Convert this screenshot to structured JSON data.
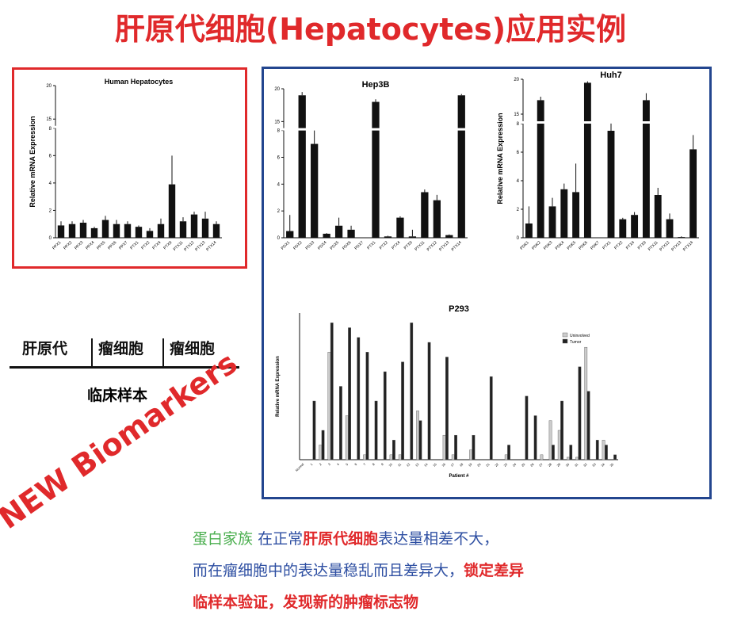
{
  "title": "肝原代细胞(Hepatocytes)应用实例",
  "samples": {
    "headers": [
      "肝原代",
      "瘤细胞",
      "瘤细胞"
    ],
    "label": "临床样本"
  },
  "tag": "NEW Biomarkers",
  "description": {
    "line1": [
      "蛋白家族",
      "在正常",
      "肝原代细胞",
      "表达量相差不大，"
    ],
    "line2": [
      "而在瘤细胞中的表达量稳乱而且差异大，",
      "锁定差异"
    ],
    "line3": [
      "临样本验证，发现新的肿瘤标志物"
    ]
  },
  "chart_data": [
    {
      "type": "bar",
      "title": "Human Hepatocytes",
      "y_label": "Relative mRNA Expression",
      "color": "#111111",
      "categories": [
        "PPX1",
        "PPX2",
        "PPX3",
        "PPX4",
        "PPX5",
        "PPX6",
        "PPX7",
        "PTX1",
        "PTX2",
        "PTX4",
        "PTX9",
        "PTX11",
        "PTX12",
        "PTX13",
        "PTX14"
      ],
      "values": [
        0.9,
        1.0,
        1.1,
        0.7,
        1.3,
        1.0,
        1.0,
        0.8,
        0.5,
        1.0,
        3.9,
        1.2,
        1.7,
        1.4,
        1.0
      ],
      "errors": [
        0.3,
        0.2,
        0.2,
        0.1,
        0.3,
        0.3,
        0.2,
        0.1,
        0.2,
        0.4,
        2.1,
        0.3,
        0.2,
        0.5,
        0.2
      ],
      "ylim": [
        0,
        20
      ],
      "yticks": [
        0,
        2,
        4,
        6,
        8,
        15,
        20
      ],
      "ybreak": [
        8,
        15
      ]
    },
    {
      "type": "bar",
      "title": "Hep3B",
      "color": "#111111",
      "categories": [
        "PDX1",
        "PDX2",
        "PDX3",
        "PDX4",
        "PDX5",
        "PDX6",
        "PDX7",
        "PTX1",
        "PTX2",
        "PTX4",
        "PTX9",
        "PTX11",
        "PTX12",
        "PTX13",
        "PTX14"
      ],
      "values": [
        0.5,
        19,
        7.0,
        0.3,
        0.9,
        0.6,
        0,
        18,
        0.1,
        1.5,
        0.1,
        3.4,
        2.8,
        0.2,
        19
      ],
      "errors": [
        1.2,
        0.5,
        1.0,
        0.05,
        0.6,
        0.3,
        0,
        0.4,
        0.05,
        0.1,
        0.5,
        0.2,
        0.4,
        0.05,
        0.2
      ],
      "ylim": [
        0,
        20
      ],
      "yticks": [
        0,
        2,
        4,
        6,
        8,
        15,
        20
      ],
      "ybreak": [
        8,
        15
      ]
    },
    {
      "type": "bar",
      "title": "Huh7",
      "y_label": "Relative mRNA Expression",
      "color": "#111111",
      "categories": [
        "PDK1",
        "PDK2",
        "PDK3",
        "PDK4",
        "PDK5",
        "PDK6",
        "PDK7",
        "PTX1",
        "PTX2",
        "PTX4",
        "PTX9",
        "PTX11",
        "PTX12",
        "PTX13",
        "PTX14"
      ],
      "values": [
        1.0,
        17,
        2.2,
        3.4,
        3.2,
        19.5,
        0,
        7.5,
        1.3,
        1.6,
        17,
        3.0,
        1.3,
        0.05,
        6.2
      ],
      "errors": [
        1.2,
        0.5,
        0.6,
        0.4,
        2.0,
        0.2,
        0,
        0.6,
        0.1,
        0.2,
        1.0,
        0.5,
        0.4,
        0.05,
        1.0
      ],
      "ylim": [
        0,
        20
      ],
      "yticks": [
        0,
        2,
        4,
        6,
        8,
        15,
        20
      ],
      "ybreak": [
        8,
        15
      ]
    },
    {
      "type": "bar",
      "title": "P293",
      "y_label": "Relative mRNA Expression",
      "x_label": "Patient #",
      "categories": [
        "Normal",
        "1",
        "2",
        "3",
        "4",
        "5",
        "6",
        "7",
        "8",
        "9",
        "10",
        "11",
        "12",
        "13",
        "14",
        "15",
        "16",
        "17",
        "18",
        "19",
        "20",
        "21",
        "22",
        "23",
        "24",
        "25",
        "26",
        "27",
        "28",
        "29",
        "30",
        "31",
        "32",
        "33",
        "34",
        "35"
      ],
      "series": [
        {
          "name": "Uninvolved",
          "color": "#cccccc",
          "values": [
            0,
            0,
            3,
            22,
            0,
            9,
            0,
            1,
            0,
            0,
            1,
            1,
            0,
            10,
            0,
            0,
            5,
            1,
            0,
            2,
            0,
            0,
            0,
            1,
            0,
            0,
            0,
            1,
            8,
            6,
            0.5,
            0.5,
            23,
            0,
            4,
            0
          ]
        },
        {
          "name": "Tumor",
          "color": "#222222",
          "values": [
            0,
            12,
            6,
            28,
            15,
            27,
            25,
            22,
            12,
            18,
            4,
            20,
            28,
            8,
            24,
            0,
            21,
            5,
            0,
            5,
            0,
            17,
            0,
            3,
            0,
            13,
            9,
            0,
            3,
            12,
            3,
            19,
            14,
            4,
            3,
            1
          ]
        }
      ],
      "ylim": [
        0,
        30
      ],
      "legend": "upper right"
    }
  ]
}
